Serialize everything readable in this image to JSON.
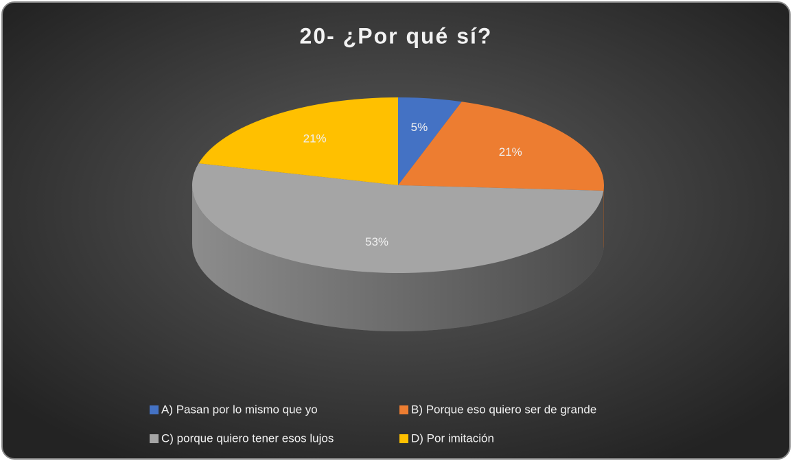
{
  "chart_data": {
    "type": "pie",
    "title": "20- ¿Por qué sí?",
    "categories": [
      "A) Pasan por lo mismo que yo",
      "B) Porque eso quiero ser de grande",
      "C) porque quiero tener esos lujos",
      "D) Por imitación"
    ],
    "values": [
      5,
      21,
      53,
      21
    ],
    "value_labels": [
      "5%",
      "21%",
      "53%",
      "21%"
    ],
    "colors": [
      "#4472c4",
      "#ed7d31",
      "#a5a5a5",
      "#ffc000"
    ]
  }
}
